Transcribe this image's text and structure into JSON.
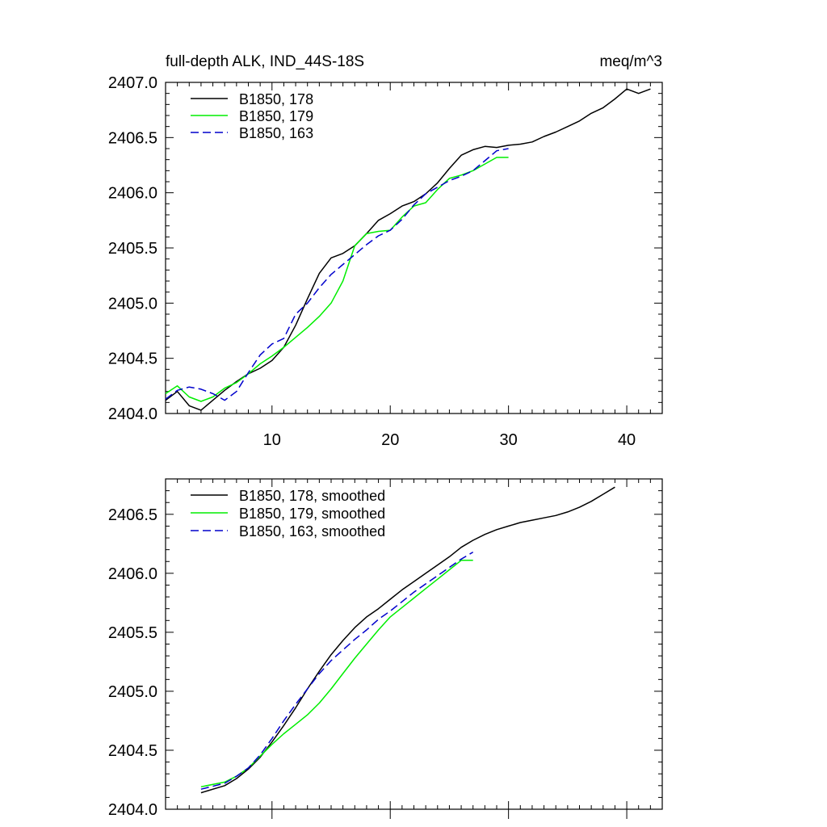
{
  "chart_data": [
    {
      "type": "line",
      "title": "full-depth ALK, IND_44S-18S",
      "units": "meq/m^3",
      "xlim": [
        1,
        43
      ],
      "ylim": [
        2404.0,
        2407.0
      ],
      "xticks": [
        10,
        20,
        30,
        40
      ],
      "xtick_labels": [
        "10",
        "20",
        "30",
        "40"
      ],
      "yticks": [
        2404.0,
        2404.5,
        2405.0,
        2405.5,
        2406.0,
        2406.5,
        2407.0
      ],
      "ytick_labels": [
        "2404.0",
        "2404.5",
        "2405.0",
        "2405.5",
        "2406.0",
        "2406.5",
        "2407.0"
      ],
      "legend_position": "top-left",
      "series": [
        {
          "name": "B1850, 178",
          "color": "#000000",
          "dash": "solid",
          "x": [
            1,
            2,
            3,
            4,
            5,
            6,
            7,
            8,
            9,
            10,
            11,
            12,
            13,
            14,
            15,
            16,
            17,
            18,
            19,
            20,
            21,
            22,
            23,
            24,
            25,
            26,
            27,
            28,
            29,
            30,
            31,
            32,
            33,
            34,
            35,
            36,
            37,
            38,
            39,
            40,
            41,
            42
          ],
          "values": [
            2404.12,
            2404.2,
            2404.07,
            2404.03,
            2404.12,
            2404.21,
            2404.29,
            2404.36,
            2404.41,
            2404.48,
            2404.6,
            2404.8,
            2405.04,
            2405.27,
            2405.41,
            2405.45,
            2405.52,
            2405.63,
            2405.75,
            2405.81,
            2405.88,
            2405.92,
            2405.99,
            2406.09,
            2406.22,
            2406.34,
            2406.39,
            2406.42,
            2406.41,
            2406.43,
            2406.44,
            2406.46,
            2406.51,
            2406.55,
            2406.6,
            2406.65,
            2406.72,
            2406.77,
            2406.85,
            2406.94,
            2406.9,
            2406.94
          ]
        },
        {
          "name": "B1850, 179",
          "color": "#00ee00",
          "dash": "solid",
          "x": [
            1,
            2,
            3,
            4,
            5,
            6,
            7,
            8,
            9,
            10,
            11,
            12,
            13,
            14,
            15,
            16,
            17,
            18,
            19,
            20,
            21,
            22,
            23,
            24,
            25,
            26,
            27,
            28,
            29,
            30
          ],
          "values": [
            2404.18,
            2404.25,
            2404.15,
            2404.11,
            2404.15,
            2404.23,
            2404.28,
            2404.36,
            2404.45,
            2404.52,
            2404.6,
            2404.69,
            2404.78,
            2404.88,
            2405.0,
            2405.2,
            2405.52,
            2405.63,
            2405.65,
            2405.66,
            2405.78,
            2405.88,
            2405.91,
            2406.03,
            2406.13,
            2406.16,
            2406.2,
            2406.26,
            2406.32,
            2406.32
          ]
        },
        {
          "name": "B1850, 163",
          "color": "#0000cc",
          "dash": "dashed",
          "x": [
            1,
            2,
            3,
            4,
            5,
            6,
            7,
            8,
            9,
            10,
            11,
            12,
            13,
            14,
            15,
            16,
            17,
            18,
            19,
            20,
            21,
            22,
            23,
            24,
            25,
            26,
            27,
            28,
            29,
            30
          ],
          "values": [
            2404.13,
            2404.21,
            2404.24,
            2404.22,
            2404.18,
            2404.12,
            2404.2,
            2404.37,
            2404.53,
            2404.63,
            2404.68,
            2404.9,
            2405.0,
            2405.14,
            2405.26,
            2405.35,
            2405.44,
            2405.53,
            2405.61,
            2405.66,
            2405.76,
            2405.89,
            2405.99,
            2406.05,
            2406.11,
            2406.15,
            2406.2,
            2406.29,
            2406.38,
            2406.4
          ]
        }
      ]
    },
    {
      "type": "line",
      "title": "",
      "xlim": [
        1,
        43
      ],
      "ylim": [
        2404.0,
        2406.8
      ],
      "xticks": [
        10,
        20,
        30,
        40
      ],
      "xtick_labels": [
        "",
        "",
        "",
        ""
      ],
      "yticks": [
        2404.0,
        2404.5,
        2405.0,
        2405.5,
        2406.0,
        2406.5
      ],
      "ytick_labels": [
        "2404.0",
        "2404.5",
        "2405.0",
        "2405.5",
        "2406.0",
        "2406.5"
      ],
      "legend_position": "top-left",
      "series": [
        {
          "name": "B1850, 178, smoothed",
          "color": "#000000",
          "dash": "solid",
          "x": [
            4,
            6,
            7,
            8,
            9,
            10,
            11,
            12,
            13,
            14,
            15,
            16,
            17,
            18,
            19,
            20,
            21,
            22,
            23,
            24,
            25,
            26,
            27,
            28,
            29,
            30,
            31,
            32,
            33,
            34,
            35,
            36,
            37,
            38,
            39
          ],
          "values": [
            2404.14,
            2404.2,
            2404.26,
            2404.34,
            2404.44,
            2404.57,
            2404.71,
            2404.86,
            2405.02,
            2405.17,
            2405.31,
            2405.43,
            2405.54,
            2405.63,
            2405.7,
            2405.78,
            2405.86,
            2405.93,
            2406.0,
            2406.07,
            2406.14,
            2406.22,
            2406.28,
            2406.33,
            2406.37,
            2406.4,
            2406.43,
            2406.45,
            2406.47,
            2406.49,
            2406.52,
            2406.56,
            2406.61,
            2406.67,
            2406.73
          ]
        },
        {
          "name": "B1850, 179, smoothed",
          "color": "#00ee00",
          "dash": "solid",
          "x": [
            4,
            6,
            7,
            8,
            9,
            10,
            11,
            12,
            13,
            14,
            15,
            16,
            17,
            18,
            19,
            20,
            21,
            22,
            23,
            24,
            25,
            26,
            27
          ],
          "values": [
            2404.19,
            2404.23,
            2404.28,
            2404.35,
            2404.45,
            2404.55,
            2404.64,
            2404.72,
            2404.8,
            2404.9,
            2405.02,
            2405.15,
            2405.28,
            2405.4,
            2405.52,
            2405.63,
            2405.71,
            2405.79,
            2405.87,
            2405.95,
            2406.03,
            2406.11,
            2406.11
          ]
        },
        {
          "name": "B1850, 163, smoothed",
          "color": "#0000cc",
          "dash": "dashed",
          "x": [
            4,
            6,
            7,
            8,
            9,
            10,
            11,
            12,
            13,
            14,
            15,
            16,
            17,
            18,
            19,
            20,
            21,
            22,
            23,
            24,
            25,
            26,
            27
          ],
          "values": [
            2404.17,
            2404.22,
            2404.28,
            2404.35,
            2404.46,
            2404.6,
            2404.75,
            2404.89,
            2405.02,
            2405.15,
            2405.26,
            2405.35,
            2405.44,
            2405.52,
            2405.61,
            2405.68,
            2405.76,
            2405.84,
            2405.91,
            2405.98,
            2406.05,
            2406.12,
            2406.18
          ]
        }
      ]
    }
  ]
}
